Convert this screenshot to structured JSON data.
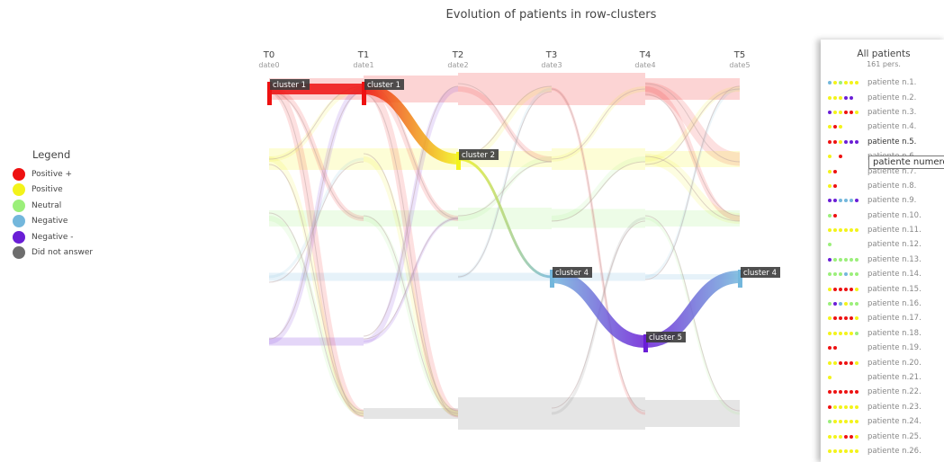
{
  "title": "Evolution of patients in row-clusters",
  "legend": {
    "title": "Legend",
    "items": [
      {
        "label": "Positive +",
        "color": "#ee1111"
      },
      {
        "label": "Positive",
        "color": "#f3f31a"
      },
      {
        "label": "Neutral",
        "color": "#9bef7a"
      },
      {
        "label": "Negative",
        "color": "#73b7dc"
      },
      {
        "label": "Negative -",
        "color": "#6a1ed6"
      },
      {
        "label": "Did not answer",
        "color": "#6d6d6d"
      }
    ]
  },
  "patients_panel": {
    "title": "All patients",
    "subtitle": "161 pers.",
    "tooltip": "patiente numero",
    "highlighted_index": 4,
    "items": [
      {
        "label": "patiente n.1.",
        "answers": [
          3,
          1,
          2,
          1,
          1,
          1
        ]
      },
      {
        "label": "patiente n.2.",
        "answers": [
          1,
          1,
          1,
          4,
          4
        ]
      },
      {
        "label": "patiente n.3.",
        "answers": [
          4,
          1,
          1,
          0,
          0,
          1
        ]
      },
      {
        "label": "patiente n.4.",
        "answers": [
          1,
          0,
          1
        ]
      },
      {
        "label": "patiente n.5.",
        "answers": [
          0,
          0,
          1,
          4,
          4,
          4
        ]
      },
      {
        "label": "patiente n.6.",
        "answers": [
          1,
          -1,
          0
        ]
      },
      {
        "label": "patiente n.7.",
        "answers": [
          1,
          0
        ]
      },
      {
        "label": "patiente n.8.",
        "answers": [
          1,
          0
        ]
      },
      {
        "label": "patiente n.9.",
        "answers": [
          4,
          4,
          3,
          3,
          3,
          4
        ]
      },
      {
        "label": "patiente n.10.",
        "answers": [
          2,
          0
        ]
      },
      {
        "label": "patiente n.11.",
        "answers": [
          1,
          1,
          1,
          1,
          1,
          1
        ]
      },
      {
        "label": "patiente n.12.",
        "answers": [
          2
        ]
      },
      {
        "label": "patiente n.13.",
        "answers": [
          4,
          2,
          2,
          2,
          2,
          2
        ]
      },
      {
        "label": "patiente n.14.",
        "answers": [
          2,
          2,
          2,
          3,
          2,
          2
        ]
      },
      {
        "label": "patiente n.15.",
        "answers": [
          1,
          0,
          0,
          0,
          0,
          1
        ]
      },
      {
        "label": "patiente n.16.",
        "answers": [
          2,
          4,
          3,
          1,
          2,
          2
        ]
      },
      {
        "label": "patiente n.17.",
        "answers": [
          1,
          0,
          0,
          0,
          0,
          1
        ]
      },
      {
        "label": "patiente n.18.",
        "answers": [
          1,
          1,
          1,
          1,
          1,
          2
        ]
      },
      {
        "label": "patiente n.19.",
        "answers": [
          0,
          0
        ]
      },
      {
        "label": "patiente n.20.",
        "answers": [
          1,
          1,
          0,
          0,
          0,
          1
        ]
      },
      {
        "label": "patiente n.21.",
        "answers": [
          1
        ]
      },
      {
        "label": "patiente n.22.",
        "answers": [
          0,
          0,
          0,
          0,
          0,
          0
        ]
      },
      {
        "label": "patiente n.23.",
        "answers": [
          0,
          1,
          1,
          1,
          1,
          1
        ]
      },
      {
        "label": "patiente n.24.",
        "answers": [
          2,
          1,
          1,
          1,
          1,
          1
        ]
      },
      {
        "label": "patiente n.25.",
        "answers": [
          1,
          1,
          1,
          0,
          0,
          1
        ]
      },
      {
        "label": "patiente n.26.",
        "answers": [
          1,
          1,
          1,
          1,
          1,
          1
        ]
      }
    ]
  },
  "chart_data": {
    "type": "sankey",
    "title": "Evolution of patients in row-clusters",
    "columns": [
      {
        "label": "T0",
        "sub": "date0"
      },
      {
        "label": "T1",
        "sub": "date1"
      },
      {
        "label": "T2",
        "sub": "date2"
      },
      {
        "label": "T3",
        "sub": "date3"
      },
      {
        "label": "T4",
        "sub": "date4"
      },
      {
        "label": "T5",
        "sub": "date5"
      }
    ],
    "clusters": [
      {
        "id": "cluster 1",
        "color": "#ee1111"
      },
      {
        "id": "cluster 2",
        "color": "#f3f31a"
      },
      {
        "id": "cluster 3",
        "color": "#9bef7a"
      },
      {
        "id": "cluster 4",
        "color": "#73b7dc"
      },
      {
        "id": "cluster 5",
        "color": "#6a1ed6"
      },
      {
        "id": "cluster 6",
        "color": "#6d6d6d"
      }
    ],
    "node_labels": [
      {
        "text": "cluster 1",
        "column": 0,
        "cluster": 0
      },
      {
        "text": "cluster 1",
        "column": 1,
        "cluster": 0
      },
      {
        "text": "cluster 2",
        "column": 2,
        "cluster": 1
      },
      {
        "text": "cluster 4",
        "column": 3,
        "cluster": 3
      },
      {
        "text": "cluster 5",
        "column": 4,
        "cluster": 4
      },
      {
        "text": "cluster 4",
        "column": 5,
        "cluster": 3
      }
    ],
    "highlighted_path": [
      0,
      0,
      1,
      3,
      4,
      3
    ],
    "flows": [
      {
        "from": [
          0,
          0
        ],
        "to": [
          1,
          0
        ],
        "value": 8
      },
      {
        "from": [
          1,
          0
        ],
        "to": [
          2,
          0
        ],
        "value": 10
      },
      {
        "from": [
          2,
          0
        ],
        "to": [
          3,
          0
        ],
        "value": 12
      },
      {
        "from": [
          3,
          0
        ],
        "to": [
          4,
          0
        ],
        "value": 12
      },
      {
        "from": [
          4,
          0
        ],
        "to": [
          5,
          0
        ],
        "value": 8
      },
      {
        "from": [
          4,
          0
        ],
        "to": [
          5,
          1
        ],
        "value": 5
      },
      {
        "from": [
          0,
          1
        ],
        "to": [
          1,
          1
        ],
        "value": 8
      },
      {
        "from": [
          1,
          1
        ],
        "to": [
          2,
          1
        ],
        "value": 8
      },
      {
        "from": [
          2,
          1
        ],
        "to": [
          3,
          1
        ],
        "value": 6
      },
      {
        "from": [
          3,
          1
        ],
        "to": [
          4,
          1
        ],
        "value": 8
      },
      {
        "from": [
          4,
          1
        ],
        "to": [
          5,
          1
        ],
        "value": 6
      },
      {
        "from": [
          4,
          1
        ],
        "to": [
          5,
          2
        ],
        "value": 4
      },
      {
        "from": [
          0,
          2
        ],
        "to": [
          1,
          2
        ],
        "value": 6
      },
      {
        "from": [
          1,
          2
        ],
        "to": [
          2,
          2
        ],
        "value": 6
      },
      {
        "from": [
          2,
          2
        ],
        "to": [
          3,
          2
        ],
        "value": 8
      },
      {
        "from": [
          3,
          2
        ],
        "to": [
          4,
          2
        ],
        "value": 7
      },
      {
        "from": [
          4,
          2
        ],
        "to": [
          5,
          2
        ],
        "value": 6
      },
      {
        "from": [
          0,
          3
        ],
        "to": [
          1,
          3
        ],
        "value": 3
      },
      {
        "from": [
          1,
          3
        ],
        "to": [
          2,
          3
        ],
        "value": 3
      },
      {
        "from": [
          2,
          3
        ],
        "to": [
          3,
          3
        ],
        "value": 3
      },
      {
        "from": [
          3,
          3
        ],
        "to": [
          4,
          3
        ],
        "value": 3
      },
      {
        "from": [
          4,
          3
        ],
        "to": [
          5,
          3
        ],
        "value": 2
      },
      {
        "from": [
          0,
          4
        ],
        "to": [
          1,
          4
        ],
        "value": 3
      },
      {
        "from": [
          0,
          0
        ],
        "to": [
          1,
          5
        ],
        "value": 3
      },
      {
        "from": [
          0,
          1
        ],
        "to": [
          1,
          5
        ],
        "value": 2
      },
      {
        "from": [
          0,
          2
        ],
        "to": [
          1,
          5
        ],
        "value": 2
      },
      {
        "from": [
          0,
          4
        ],
        "to": [
          1,
          0
        ],
        "value": 2
      },
      {
        "from": [
          0,
          1
        ],
        "to": [
          1,
          0
        ],
        "value": 2
      },
      {
        "from": [
          1,
          5
        ],
        "to": [
          2,
          5
        ],
        "value": 4
      },
      {
        "from": [
          1,
          0
        ],
        "to": [
          2,
          5
        ],
        "value": 3
      },
      {
        "from": [
          1,
          1
        ],
        "to": [
          2,
          5
        ],
        "value": 2
      },
      {
        "from": [
          1,
          2
        ],
        "to": [
          2,
          5
        ],
        "value": 2
      },
      {
        "from": [
          2,
          5
        ],
        "to": [
          3,
          5
        ],
        "value": 12
      },
      {
        "from": [
          3,
          5
        ],
        "to": [
          4,
          5
        ],
        "value": 12
      },
      {
        "from": [
          4,
          5
        ],
        "to": [
          5,
          5
        ],
        "value": 10
      },
      {
        "from": [
          2,
          0
        ],
        "to": [
          3,
          1
        ],
        "value": 2
      },
      {
        "from": [
          2,
          1
        ],
        "to": [
          3,
          0
        ],
        "value": 2
      },
      {
        "from": [
          3,
          1
        ],
        "to": [
          4,
          0
        ],
        "value": 2
      },
      {
        "from": [
          3,
          2
        ],
        "to": [
          4,
          1
        ],
        "value": 2
      },
      {
        "from": [
          4,
          0
        ],
        "to": [
          5,
          2
        ],
        "value": 2
      },
      {
        "from": [
          1,
          0
        ],
        "to": [
          2,
          2
        ],
        "value": 2
      },
      {
        "from": [
          2,
          2
        ],
        "to": [
          3,
          1
        ],
        "value": 2
      },
      {
        "from": [
          3,
          0
        ],
        "to": [
          4,
          5
        ],
        "value": 1
      },
      {
        "from": [
          0,
          0
        ],
        "to": [
          1,
          2
        ],
        "value": 2
      },
      {
        "from": [
          0,
          3
        ],
        "to": [
          1,
          1
        ],
        "value": 1
      },
      {
        "from": [
          1,
          4
        ],
        "to": [
          2,
          0
        ],
        "value": 2
      },
      {
        "from": [
          1,
          4
        ],
        "to": [
          2,
          2
        ],
        "value": 1
      },
      {
        "from": [
          2,
          3
        ],
        "to": [
          3,
          0
        ],
        "value": 1
      },
      {
        "from": [
          4,
          3
        ],
        "to": [
          5,
          0
        ],
        "value": 1
      },
      {
        "from": [
          4,
          1
        ],
        "to": [
          5,
          0
        ],
        "value": 2
      },
      {
        "from": [
          3,
          5
        ],
        "to": [
          4,
          2
        ],
        "value": 1
      },
      {
        "from": [
          4,
          2
        ],
        "to": [
          5,
          5
        ],
        "value": 1
      }
    ]
  }
}
